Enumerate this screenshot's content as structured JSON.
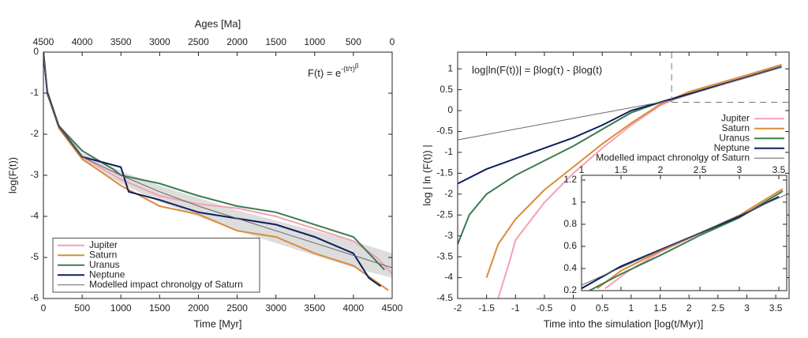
{
  "chart_data": [
    {
      "type": "line",
      "xlabel": "Time [Myr]",
      "ylabel": "log(F(t))",
      "x2label": "Ages [Ma]",
      "annotation": {
        "text": "F(t) = e",
        "sup": "-(t/τ)",
        "sup2": "β"
      },
      "xlim": [
        0,
        4500
      ],
      "xticks": [
        0,
        500,
        1000,
        1500,
        2000,
        2500,
        3000,
        3500,
        4000,
        4500
      ],
      "x2lim": [
        4500,
        0
      ],
      "x2ticks": [
        4500,
        4000,
        3500,
        3000,
        2500,
        2000,
        1500,
        1000,
        500,
        0
      ],
      "ylim": [
        -6,
        0
      ],
      "yticks": [
        0,
        -1,
        -2,
        -3,
        -4,
        -5,
        -6
      ],
      "legend": "lower left",
      "grid": false,
      "band": {
        "color": "#dddddd",
        "x": [
          0,
          50,
          200,
          500,
          1000,
          1500,
          2000,
          2500,
          3000,
          3500,
          4000,
          4500
        ],
        "upper": [
          0,
          -0.95,
          -1.75,
          -2.45,
          -2.9,
          -3.25,
          -3.55,
          -3.85,
          -4.1,
          -4.35,
          -4.6,
          -4.9
        ],
        "lower": [
          0,
          -1.05,
          -1.9,
          -2.65,
          -3.2,
          -3.65,
          -4.0,
          -4.35,
          -4.65,
          -4.95,
          -5.25,
          -5.5
        ]
      },
      "series": [
        {
          "name": "Jupiter",
          "color": "#f4a0b4",
          "x": [
            0,
            50,
            200,
            500,
            1000,
            1500,
            2000,
            2500,
            3000,
            3500,
            4000,
            4300,
            4500
          ],
          "values": [
            0,
            -1,
            -1.8,
            -2.55,
            -3.1,
            -3.5,
            -3.7,
            -3.8,
            -4.0,
            -4.3,
            -4.6,
            -5.0,
            -5.4
          ]
        },
        {
          "name": "Saturn",
          "color": "#d98c3a",
          "x": [
            0,
            50,
            200,
            500,
            1000,
            1500,
            2000,
            2500,
            3000,
            3500,
            4000,
            4300,
            4450
          ],
          "values": [
            0,
            -1,
            -1.85,
            -2.6,
            -3.25,
            -3.75,
            -3.95,
            -4.35,
            -4.5,
            -4.9,
            -5.2,
            -5.6,
            -5.8
          ]
        },
        {
          "name": "Uranus",
          "color": "#3f7a4f",
          "x": [
            0,
            50,
            200,
            500,
            900,
            1000,
            1500,
            2000,
            2500,
            3000,
            3500,
            4000,
            4400
          ],
          "values": [
            0,
            -0.95,
            -1.8,
            -2.4,
            -2.85,
            -3.0,
            -3.2,
            -3.5,
            -3.75,
            -3.9,
            -4.2,
            -4.5,
            -5.3
          ]
        },
        {
          "name": "Neptune",
          "color": "#0d1f5c",
          "x": [
            0,
            50,
            200,
            500,
            1000,
            1100,
            1500,
            2000,
            2500,
            3000,
            3500,
            4000,
            4200,
            4350
          ],
          "values": [
            0,
            -1,
            -1.8,
            -2.55,
            -2.8,
            -3.4,
            -3.6,
            -3.9,
            -4.05,
            -4.2,
            -4.5,
            -4.9,
            -5.5,
            -5.7
          ]
        },
        {
          "name": "Modelled impact chronolgy of Saturn",
          "color": "#666666",
          "x": [
            0,
            50,
            200,
            500,
            1000,
            1500,
            2000,
            2500,
            3000,
            3500,
            4000,
            4500
          ],
          "values": [
            0,
            -1,
            -1.8,
            -2.55,
            -3.0,
            -3.4,
            -3.75,
            -4.05,
            -4.35,
            -4.65,
            -4.95,
            -5.25
          ]
        }
      ]
    },
    {
      "type": "line",
      "xlabel": "Time into the simulation [log(t/Myr)]",
      "ylabel": "log | ln (F(t)) |",
      "annotation": {
        "text": "log|ln(F(t))| = βlog(τ) - βlog(t)"
      },
      "xlim": [
        -2,
        3.73
      ],
      "xticks": [
        -2,
        -1.5,
        -1,
        -0.5,
        0,
        0.5,
        1,
        1.5,
        2,
        2.5,
        3,
        3.5
      ],
      "ylim": [
        -4.5,
        1.4
      ],
      "yticks": [
        -4.5,
        -4,
        -3.5,
        -3,
        -2.5,
        -2,
        -1.5,
        -1,
        -0.5,
        0,
        0.5,
        1
      ],
      "legend": "upper right",
      "grid": false,
      "dashed_lines": {
        "x": 1.7,
        "y": 0.2
      },
      "series": [
        {
          "name": "Jupiter",
          "color": "#f4a0b4",
          "x": [
            -1.3,
            -1.1,
            -1,
            -0.5,
            0,
            0.5,
            1,
            1.5,
            2,
            2.5,
            3,
            3.6
          ],
          "values": [
            -4.5,
            -3.6,
            -3.1,
            -2.2,
            -1.5,
            -0.9,
            -0.35,
            0.12,
            0.42,
            0.62,
            0.82,
            1.1
          ]
        },
        {
          "name": "Saturn",
          "color": "#d98c3a",
          "x": [
            -1.5,
            -1.3,
            -1,
            -0.5,
            0,
            0.5,
            1,
            1.5,
            2,
            2.5,
            3,
            3.6
          ],
          "values": [
            -4,
            -3.2,
            -2.6,
            -1.9,
            -1.35,
            -0.8,
            -0.3,
            0.15,
            0.45,
            0.65,
            0.85,
            1.1
          ]
        },
        {
          "name": "Uranus",
          "color": "#3f7a4f",
          "x": [
            -2,
            -1.8,
            -1.5,
            -1,
            -0.5,
            0,
            0.5,
            1,
            1.5,
            2,
            2.5,
            3,
            3.6
          ],
          "values": [
            -3.2,
            -2.5,
            -2.0,
            -1.55,
            -1.2,
            -0.85,
            -0.45,
            -0.05,
            0.2,
            0.4,
            0.6,
            0.8,
            1.05
          ]
        },
        {
          "name": "Neptune",
          "color": "#0d1f5c",
          "x": [
            -2,
            -1.5,
            -1,
            -0.5,
            0,
            0.5,
            1,
            1.5,
            2,
            2.5,
            3,
            3.6
          ],
          "values": [
            -1.75,
            -1.4,
            -1.15,
            -0.9,
            -0.65,
            -0.35,
            0,
            0.2,
            0.4,
            0.6,
            0.8,
            1.05
          ]
        },
        {
          "name": "Modelled impact chronolgy of Saturn",
          "color": "#666666",
          "x": [
            -2,
            1.7,
            3.6
          ],
          "values": [
            -0.7,
            0.25,
            1.05
          ]
        }
      ]
    },
    {
      "type": "line",
      "xlim": [
        1,
        3.6
      ],
      "xticks": [
        1,
        1.5,
        2,
        2.5,
        3,
        3.5
      ],
      "ylim": [
        0.2,
        1.2
      ],
      "yticks": [
        0.2,
        0.4,
        0.6,
        0.8,
        1,
        1.2
      ],
      "grid": false,
      "series": [
        {
          "color": "#f4a0b4",
          "x": [
            1.3,
            1.6,
            2,
            2.5,
            3,
            3.55
          ],
          "values": [
            0.22,
            0.38,
            0.55,
            0.72,
            0.88,
            1.12
          ]
        },
        {
          "color": "#d98c3a",
          "x": [
            1.2,
            1.5,
            2,
            2.5,
            3,
            3.55
          ],
          "values": [
            0.22,
            0.38,
            0.56,
            0.72,
            0.88,
            1.12
          ]
        },
        {
          "color": "#3f7a4f",
          "x": [
            1.1,
            1.5,
            2,
            2.5,
            3,
            3.55
          ],
          "values": [
            0.2,
            0.35,
            0.52,
            0.7,
            0.86,
            1.1
          ]
        },
        {
          "color": "#0d1f5c",
          "x": [
            1,
            1.5,
            2,
            2.5,
            3,
            3.5
          ],
          "values": [
            0.22,
            0.42,
            0.57,
            0.72,
            0.87,
            1.05
          ]
        },
        {
          "color": "#666666",
          "x": [
            1,
            3.6
          ],
          "values": [
            0.25,
            1.07
          ]
        }
      ]
    }
  ]
}
